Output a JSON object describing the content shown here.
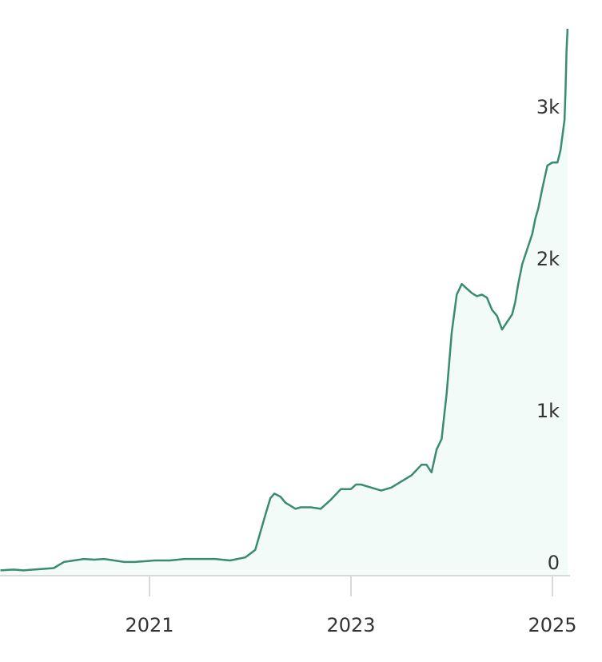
{
  "chart_data": {
    "type": "area",
    "x_ticks": [
      {
        "value": 2021,
        "label": "2021"
      },
      {
        "value": 2023,
        "label": "2023"
      },
      {
        "value": 2025,
        "label": "2025"
      }
    ],
    "y_ticks": [
      {
        "value": 0,
        "label": "0"
      },
      {
        "value": 1000,
        "label": "1k"
      },
      {
        "value": 2000,
        "label": "2k"
      },
      {
        "value": 3000,
        "label": "3k"
      }
    ],
    "xlim": [
      2019.52,
      2025.15
    ],
    "ylim": [
      0,
      3600
    ],
    "grid": false,
    "colors": {
      "line": "#3a8c6e",
      "fill": "#f2fbf7",
      "axis": "#d9d9d9",
      "text": "#333333"
    },
    "series": [
      {
        "x": [
          2019.52,
          2019.65,
          2019.75,
          2019.85,
          2019.95,
          2020.05,
          2020.15,
          2020.25,
          2020.35,
          2020.45,
          2020.55,
          2020.65,
          2020.75,
          2020.85,
          2020.95,
          2021.05,
          2021.2,
          2021.35,
          2021.5,
          2021.65,
          2021.8,
          2021.95,
          2022.05,
          2022.15,
          2022.2,
          2022.24,
          2022.27,
          2022.3,
          2022.35,
          2022.4,
          2022.45,
          2022.5,
          2022.55,
          2022.6,
          2022.7,
          2022.8,
          2022.9,
          2023.0,
          2023.05,
          2023.1,
          2023.15,
          2023.2,
          2023.25,
          2023.3,
          2023.4,
          2023.5,
          2023.6,
          2023.7,
          2023.75,
          2023.8,
          2023.85,
          2023.9,
          2023.95,
          2024.0,
          2024.05,
          2024.1,
          2024.15,
          2024.2,
          2024.25,
          2024.3,
          2024.35,
          2024.4,
          2024.45,
          2024.5,
          2024.55,
          2024.6,
          2024.63,
          2024.66,
          2024.7,
          2024.75,
          2024.8,
          2024.83,
          2024.86,
          2024.9,
          2024.95,
          2025.0,
          2025.05,
          2025.08,
          2025.1,
          2025.12,
          2025.13,
          2025.14,
          2025.15
        ],
        "y": [
          35,
          40,
          35,
          40,
          45,
          50,
          90,
          100,
          110,
          105,
          110,
          100,
          90,
          90,
          95,
          100,
          100,
          110,
          110,
          110,
          100,
          120,
          170,
          400,
          510,
          540,
          530,
          520,
          480,
          460,
          440,
          450,
          450,
          450,
          440,
          500,
          570,
          570,
          600,
          600,
          590,
          580,
          570,
          560,
          580,
          620,
          660,
          730,
          730,
          680,
          830,
          900,
          1200,
          1600,
          1850,
          1920,
          1890,
          1860,
          1840,
          1850,
          1830,
          1750,
          1710,
          1620,
          1670,
          1720,
          1800,
          1920,
          2050,
          2150,
          2250,
          2350,
          2420,
          2550,
          2700,
          2720,
          2720,
          2800,
          2900,
          3000,
          3200,
          3450,
          3600
        ]
      }
    ]
  }
}
